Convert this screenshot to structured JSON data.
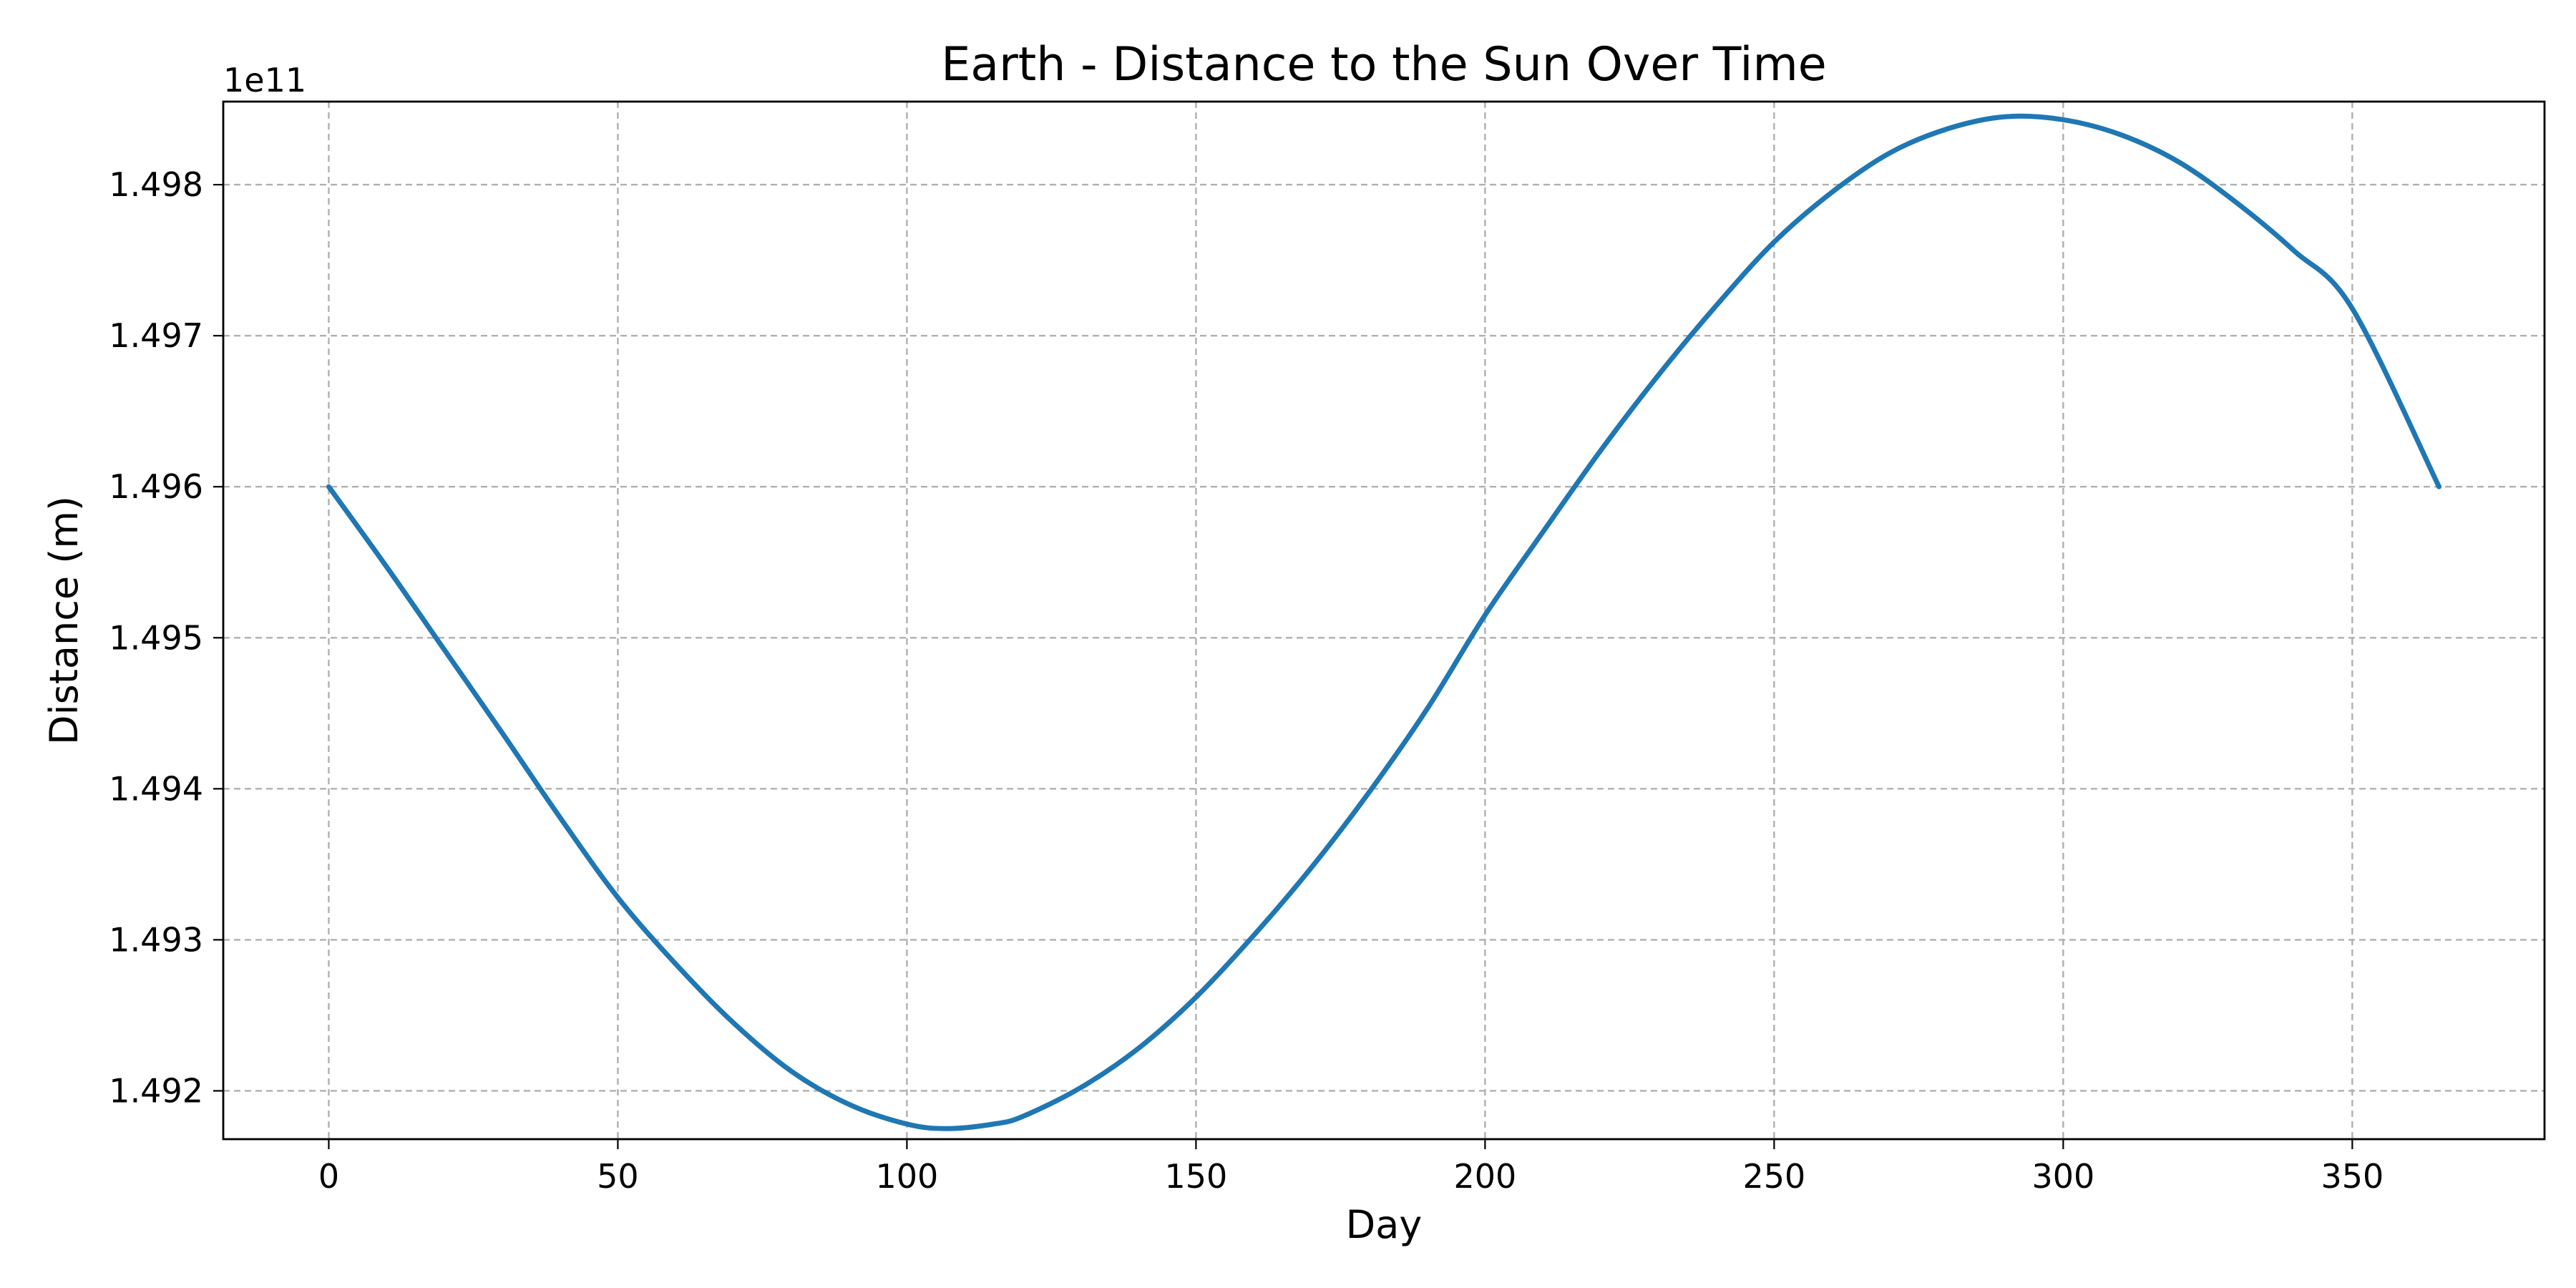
{
  "chart_data": {
    "type": "line",
    "title": "Earth - Distance to the Sun Over Time",
    "xlabel": "Day",
    "ylabel": "Distance (m)",
    "y_offset_label": "1e11",
    "xlim": [
      -18.25,
      383.25
    ],
    "ylim": [
      1.49168,
      1.49855
    ],
    "y_scale_factor": 100000000000.0,
    "x_ticks": [
      0,
      50,
      100,
      150,
      200,
      250,
      300,
      350
    ],
    "x_tick_labels": [
      "0",
      "50",
      "100",
      "150",
      "200",
      "250",
      "300",
      "350"
    ],
    "y_ticks": [
      1.492,
      1.493,
      1.494,
      1.495,
      1.496,
      1.497,
      1.498
    ],
    "y_tick_labels": [
      "1.492",
      "1.493",
      "1.494",
      "1.495",
      "1.496",
      "1.497",
      "1.498"
    ],
    "grid": true,
    "series": [
      {
        "color": "#1f77b4",
        "x": [
          0,
          10,
          20,
          30,
          40,
          50,
          60,
          70,
          80,
          90,
          100,
          107,
          115,
          120,
          130,
          140,
          150,
          160,
          170,
          180,
          190,
          200,
          210,
          220,
          230,
          240,
          250,
          260,
          270,
          280,
          290,
          300,
          310,
          320,
          330,
          340,
          350,
          365
        ],
        "y": [
          1.496,
          1.49547,
          1.49492,
          1.49437,
          1.49381,
          1.49328,
          1.49284,
          1.49245,
          1.49213,
          1.49191,
          1.49178,
          1.49175,
          1.49178,
          1.49183,
          1.49202,
          1.49228,
          1.49262,
          1.49303,
          1.49348,
          1.49398,
          1.49453,
          1.49515,
          1.4957,
          1.49624,
          1.49674,
          1.4972,
          1.49762,
          1.49795,
          1.49821,
          1.49837,
          1.49845,
          1.49843,
          1.49833,
          1.49815,
          1.49788,
          1.49756,
          1.49718,
          1.496
        ]
      }
    ]
  }
}
